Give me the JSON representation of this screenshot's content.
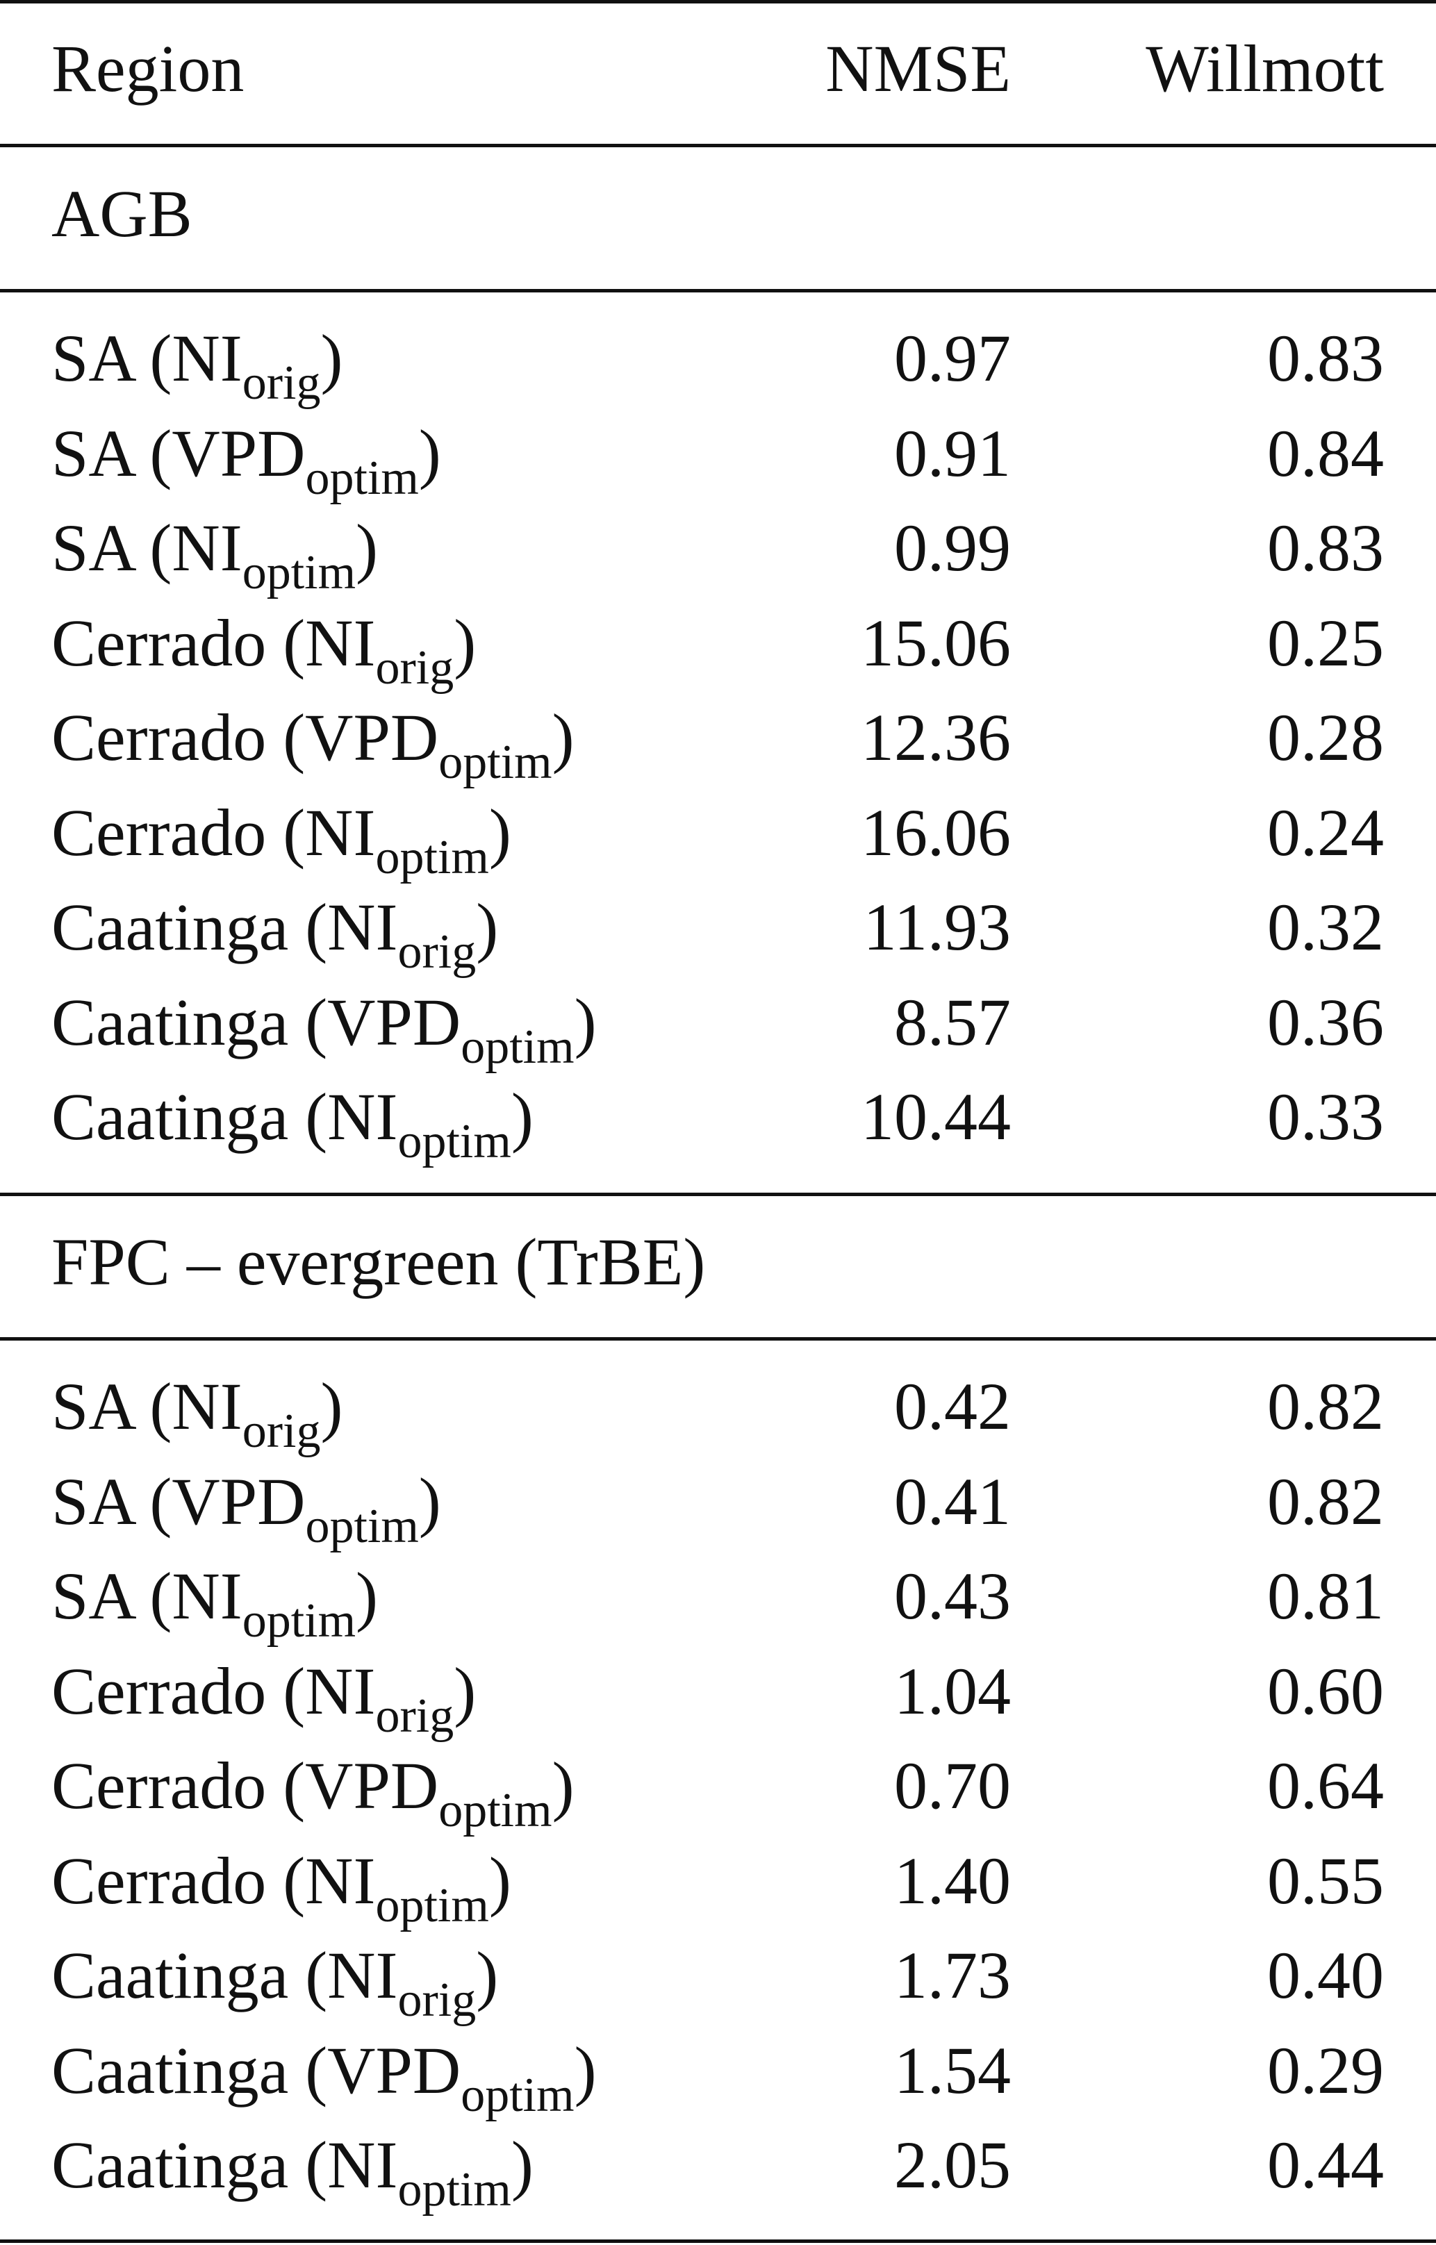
{
  "table": {
    "headers": {
      "region": "Region",
      "nmse": "NMSE",
      "willmott": "Willmott"
    },
    "sections": [
      {
        "label": "AGB",
        "rows": [
          {
            "region": "SA",
            "variant": "NI",
            "subscript": "orig",
            "nmse": "0.97",
            "willmott": "0.83"
          },
          {
            "region": "SA",
            "variant": "VPD",
            "subscript": "optim",
            "nmse": "0.91",
            "willmott": "0.84"
          },
          {
            "region": "SA",
            "variant": "NI",
            "subscript": "optim",
            "nmse": "0.99",
            "willmott": "0.83"
          },
          {
            "region": "Cerrado",
            "variant": "NI",
            "subscript": "orig",
            "nmse": "15.06",
            "willmott": "0.25"
          },
          {
            "region": "Cerrado",
            "variant": "VPD",
            "subscript": "optim",
            "nmse": "12.36",
            "willmott": "0.28"
          },
          {
            "region": "Cerrado",
            "variant": "NI",
            "subscript": "optim",
            "nmse": "16.06",
            "willmott": "0.24"
          },
          {
            "region": "Caatinga",
            "variant": "NI",
            "subscript": "orig",
            "nmse": "11.93",
            "willmott": "0.32"
          },
          {
            "region": "Caatinga",
            "variant": "VPD",
            "subscript": "optim",
            "nmse": "8.57",
            "willmott": "0.36"
          },
          {
            "region": "Caatinga",
            "variant": "NI",
            "subscript": "optim",
            "nmse": "10.44",
            "willmott": "0.33"
          }
        ]
      },
      {
        "label": "FPC – evergreen (TrBE)",
        "rows": [
          {
            "region": "SA",
            "variant": "NI",
            "subscript": "orig",
            "nmse": "0.42",
            "willmott": "0.82"
          },
          {
            "region": "SA",
            "variant": "VPD",
            "subscript": "optim",
            "nmse": "0.41",
            "willmott": "0.82"
          },
          {
            "region": "SA",
            "variant": "NI",
            "subscript": "optim",
            "nmse": "0.43",
            "willmott": "0.81"
          },
          {
            "region": "Cerrado",
            "variant": "NI",
            "subscript": "orig",
            "nmse": "1.04",
            "willmott": "0.60"
          },
          {
            "region": "Cerrado",
            "variant": "VPD",
            "subscript": "optim",
            "nmse": "0.70",
            "willmott": "0.64"
          },
          {
            "region": "Cerrado",
            "variant": "NI",
            "subscript": "optim",
            "nmse": "1.40",
            "willmott": "0.55"
          },
          {
            "region": "Caatinga",
            "variant": "NI",
            "subscript": "orig",
            "nmse": "1.73",
            "willmott": "0.40"
          },
          {
            "region": "Caatinga",
            "variant": "VPD",
            "subscript": "optim",
            "nmse": "1.54",
            "willmott": "0.29"
          },
          {
            "region": "Caatinga",
            "variant": "NI",
            "subscript": "optim",
            "nmse": "2.05",
            "willmott": "0.44"
          }
        ]
      }
    ]
  }
}
